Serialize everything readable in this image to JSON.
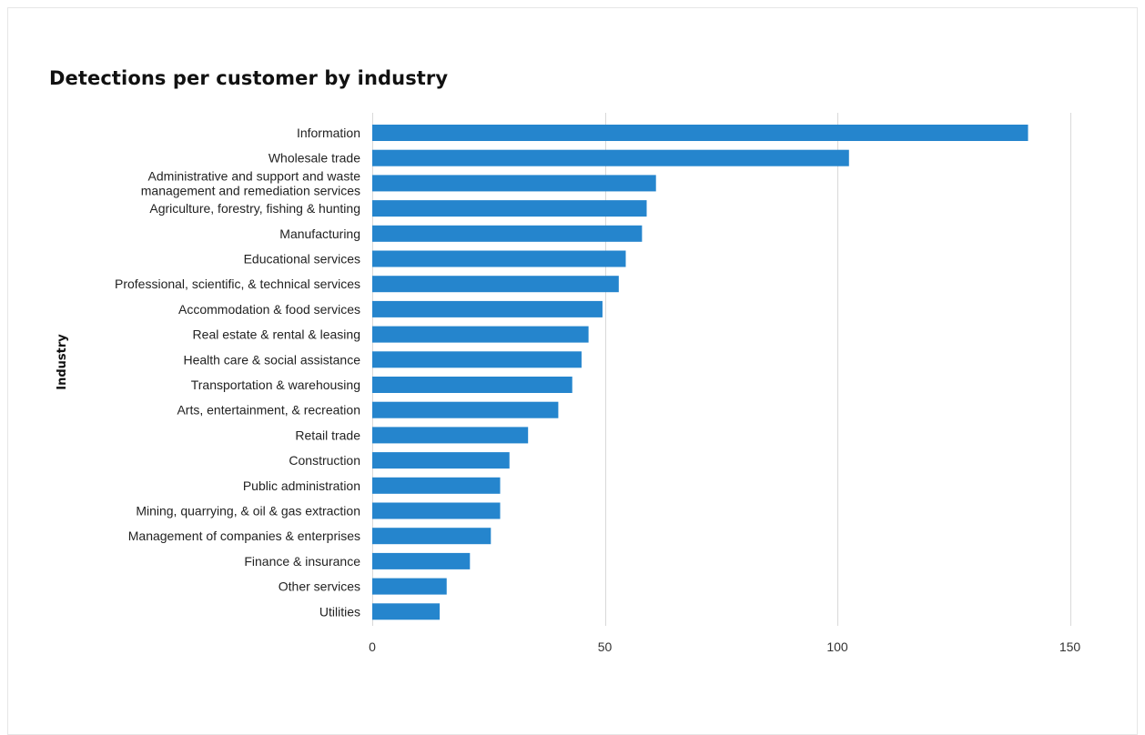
{
  "chart_data": {
    "type": "bar",
    "orientation": "horizontal",
    "title": "Detections per customer by industry",
    "xlabel": "",
    "ylabel": "Industry",
    "xlim": [
      0,
      160
    ],
    "xticks": [
      0,
      50,
      100,
      150
    ],
    "grid": true,
    "bar_color": "#2585cd",
    "categories": [
      "Information",
      "Wholesale trade",
      "Administrative and support and waste management and remediation services",
      "Agriculture, forestry, fishing & hunting",
      "Manufacturing",
      "Educational services",
      "Professional, scientific, & technical services",
      "Accommodation & food services",
      "Real estate & rental & leasing",
      "Health care & social assistance",
      "Transportation & warehousing",
      "Arts, entertainment, & recreation",
      "Retail trade",
      "Construction",
      "Public administration",
      "Mining, quarrying, & oil & gas extraction",
      "Management of companies & enterprises",
      "Finance & insurance",
      "Other services",
      "Utilities"
    ],
    "category_lines": [
      [
        "Information"
      ],
      [
        "Wholesale trade"
      ],
      [
        "Administrative and support and waste",
        "management and remediation services"
      ],
      [
        "Agriculture, forestry, fishing & hunting"
      ],
      [
        "Manufacturing"
      ],
      [
        "Educational services"
      ],
      [
        "Professional, scientific, & technical services"
      ],
      [
        "Accommodation & food services"
      ],
      [
        "Real estate & rental & leasing"
      ],
      [
        "Health care & social assistance"
      ],
      [
        "Transportation & warehousing"
      ],
      [
        "Arts, entertainment, & recreation"
      ],
      [
        "Retail trade"
      ],
      [
        "Construction"
      ],
      [
        "Public administration"
      ],
      [
        "Mining, quarrying, & oil & gas extraction"
      ],
      [
        "Management of companies & enterprises"
      ],
      [
        "Finance & insurance"
      ],
      [
        "Other services"
      ],
      [
        "Utilities"
      ]
    ],
    "values": [
      141,
      102.5,
      61,
      59,
      58,
      54.5,
      53,
      49.5,
      46.5,
      45,
      43,
      40,
      33.5,
      29.5,
      27.5,
      27.5,
      25.5,
      21,
      16,
      14.5
    ]
  }
}
